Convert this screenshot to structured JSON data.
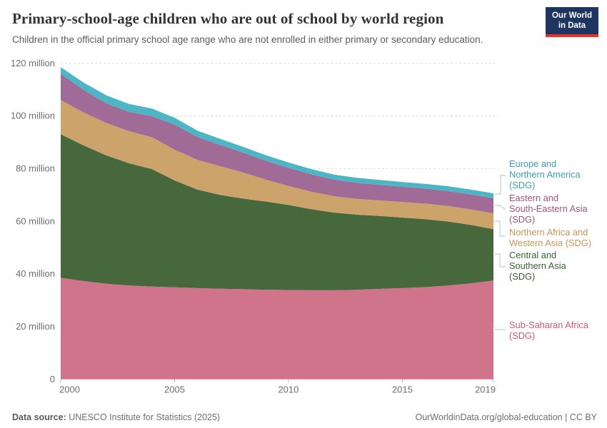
{
  "header": {
    "title": "Primary-school-age children who are out of school by world region",
    "subtitle": "Children in the official primary school age range who are not enrolled in either primary or secondary education.",
    "logo": {
      "line1": "Our World",
      "line2": "in Data",
      "bg_color": "#1d3560",
      "accent_color": "#e0352c"
    }
  },
  "chart_data": {
    "type": "area",
    "stacked": true,
    "title": "Primary-school-age children who are out of school by world region",
    "xlabel": "",
    "ylabel": "",
    "ylim": [
      0,
      120
    ],
    "grid": "horizontal-dashed",
    "legend_position": "right",
    "x": [
      2000,
      2001,
      2002,
      2003,
      2004,
      2005,
      2006,
      2007,
      2008,
      2009,
      2010,
      2011,
      2012,
      2013,
      2014,
      2015,
      2016,
      2017,
      2018,
      2019
    ],
    "xticks": [
      2000,
      2005,
      2010,
      2015,
      2019
    ],
    "yticks": [
      0,
      20,
      40,
      60,
      80,
      100,
      120
    ],
    "ytick_labels": [
      "0",
      "20 million",
      "40 million",
      "60 million",
      "80 million",
      "100 million",
      "120 million"
    ],
    "unit": "million children",
    "series": [
      {
        "id": "sub-saharan-africa",
        "name": "Sub-Saharan Africa (SDG)",
        "legend_text": "Sub-Saharan Africa\n(SDG)",
        "color": "#d0748c",
        "label_color": "#cb5a77",
        "values": [
          38.5,
          37.3,
          36.3,
          35.6,
          35.2,
          34.9,
          34.6,
          34.4,
          34.2,
          34.0,
          33.9,
          33.8,
          33.8,
          34.0,
          34.3,
          34.6,
          35.0,
          35.6,
          36.4,
          37.5
        ]
      },
      {
        "id": "central-southern-asia",
        "name": "Central and Southern Asia (SDG)",
        "legend_text": "Central and\nSouthern Asia\n(SDG)",
        "color": "#47683d",
        "label_color": "#3b5f35",
        "values": [
          54.5,
          51.5,
          48.7,
          46.4,
          44.6,
          40.6,
          37.4,
          35.6,
          34.4,
          33.5,
          32.3,
          30.8,
          29.5,
          28.5,
          27.7,
          26.8,
          25.8,
          24.3,
          22.2,
          19.5
        ]
      },
      {
        "id": "northern-africa-western-asia",
        "name": "Northern Africa and Western Asia (SDG)",
        "legend_text": "Northern Africa and\nWestern Asia (SDG)",
        "color": "#cda36c",
        "label_color": "#c9945a",
        "values": [
          13.0,
          12.5,
          12.3,
          12.2,
          12.1,
          11.7,
          11.3,
          10.9,
          9.9,
          8.3,
          7.2,
          6.6,
          6.2,
          6.0,
          5.9,
          5.9,
          5.9,
          5.9,
          5.9,
          6.0
        ]
      },
      {
        "id": "eastern-south-eastern-asia",
        "name": "Eastern and South-Eastern Asia (SDG)",
        "legend_text": "Eastern and\nSouth-Eastern Asia\n(SDG)",
        "color": "#a06b96",
        "label_color": "#a25380",
        "values": [
          10.0,
          8.6,
          7.5,
          7.3,
          8.0,
          9.5,
          8.7,
          8.1,
          7.6,
          7.2,
          6.9,
          6.6,
          6.3,
          6.1,
          5.9,
          5.8,
          5.7,
          5.7,
          5.7,
          5.8
        ]
      },
      {
        "id": "europe-northern-america",
        "name": "Europe and Northern America (SDG)",
        "legend_text": "Europe and\nNorthern America\n(SDG)",
        "color": "#4eb5c5",
        "label_color": "#3aa0b1",
        "values": [
          2.5,
          2.8,
          3.0,
          3.0,
          2.9,
          2.6,
          2.4,
          2.3,
          2.2,
          2.1,
          2.0,
          2.0,
          1.9,
          1.9,
          1.9,
          1.8,
          1.8,
          1.8,
          1.8,
          1.8
        ]
      }
    ]
  },
  "footer": {
    "source_label": "Data source:",
    "source_value": " UNESCO Institute for Statistics (2025)",
    "right_text": "OurWorldinData.org/global-education | CC BY"
  }
}
